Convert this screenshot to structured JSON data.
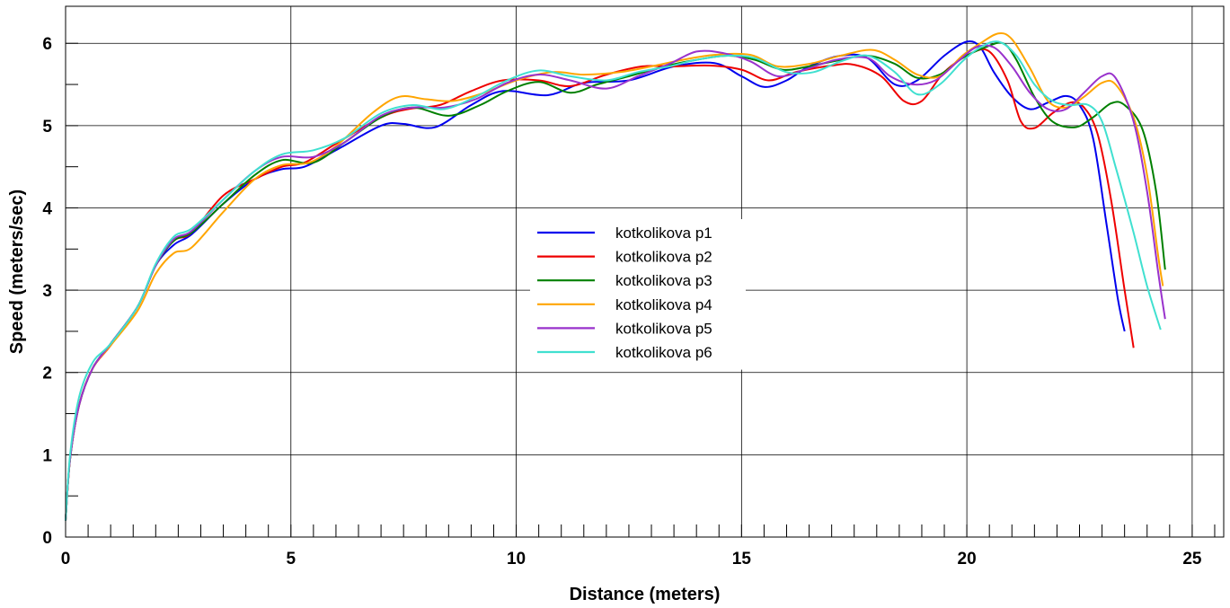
{
  "chart_data": {
    "type": "line",
    "xlabel": "Distance (meters)",
    "ylabel": "Speed (meters/sec)",
    "xlim": [
      0,
      25.7
    ],
    "ylim": [
      0,
      6.45
    ],
    "xticks": [
      0,
      5,
      10,
      15,
      20,
      25
    ],
    "yticks": [
      0,
      1,
      2,
      3,
      4,
      5,
      6
    ],
    "x_minor_step": 0.5,
    "y_minor_step": 0.5,
    "grid": true,
    "legend_position": "center",
    "series": [
      {
        "name": "kotkolikova p1",
        "color": "#0000ee",
        "points": [
          [
            0,
            0.2
          ],
          [
            0.1,
            0.95
          ],
          [
            0.3,
            1.6
          ],
          [
            0.6,
            2.05
          ],
          [
            1,
            2.35
          ],
          [
            1.6,
            2.8
          ],
          [
            2,
            3.3
          ],
          [
            2.4,
            3.55
          ],
          [
            2.8,
            3.68
          ],
          [
            3.5,
            4.05
          ],
          [
            4.2,
            4.35
          ],
          [
            4.8,
            4.47
          ],
          [
            5.3,
            4.5
          ],
          [
            6,
            4.7
          ],
          [
            7,
            5.0
          ],
          [
            7.5,
            5.02
          ],
          [
            8.2,
            4.98
          ],
          [
            9,
            5.25
          ],
          [
            9.7,
            5.42
          ],
          [
            10.7,
            5.37
          ],
          [
            11.5,
            5.52
          ],
          [
            12.5,
            5.55
          ],
          [
            13.5,
            5.72
          ],
          [
            14.4,
            5.76
          ],
          [
            15,
            5.6
          ],
          [
            15.5,
            5.47
          ],
          [
            16,
            5.55
          ],
          [
            16.5,
            5.72
          ],
          [
            17.2,
            5.85
          ],
          [
            17.8,
            5.82
          ],
          [
            18.4,
            5.5
          ],
          [
            18.9,
            5.55
          ],
          [
            19.5,
            5.85
          ],
          [
            20,
            6.02
          ],
          [
            20.3,
            5.95
          ],
          [
            20.6,
            5.65
          ],
          [
            21,
            5.35
          ],
          [
            21.4,
            5.2
          ],
          [
            21.8,
            5.28
          ],
          [
            22.2,
            5.36
          ],
          [
            22.5,
            5.25
          ],
          [
            22.8,
            4.85
          ],
          [
            23.1,
            3.8
          ],
          [
            23.35,
            2.9
          ],
          [
            23.5,
            2.5
          ]
        ]
      },
      {
        "name": "kotkolikova p2",
        "color": "#ee0000",
        "points": [
          [
            0,
            0.2
          ],
          [
            0.1,
            0.95
          ],
          [
            0.3,
            1.6
          ],
          [
            0.6,
            2.05
          ],
          [
            1,
            2.33
          ],
          [
            1.6,
            2.8
          ],
          [
            2,
            3.3
          ],
          [
            2.4,
            3.6
          ],
          [
            2.8,
            3.7
          ],
          [
            3.5,
            4.15
          ],
          [
            4.2,
            4.35
          ],
          [
            4.8,
            4.5
          ],
          [
            5.3,
            4.55
          ],
          [
            6,
            4.78
          ],
          [
            7,
            5.1
          ],
          [
            7.6,
            5.2
          ],
          [
            8.3,
            5.25
          ],
          [
            9,
            5.42
          ],
          [
            9.7,
            5.55
          ],
          [
            10.5,
            5.55
          ],
          [
            11.2,
            5.48
          ],
          [
            12,
            5.62
          ],
          [
            12.8,
            5.72
          ],
          [
            13.5,
            5.72
          ],
          [
            14.3,
            5.73
          ],
          [
            15,
            5.68
          ],
          [
            15.6,
            5.55
          ],
          [
            16.2,
            5.65
          ],
          [
            17,
            5.73
          ],
          [
            17.5,
            5.74
          ],
          [
            18.1,
            5.6
          ],
          [
            18.6,
            5.3
          ],
          [
            19,
            5.3
          ],
          [
            19.5,
            5.65
          ],
          [
            20.1,
            5.88
          ],
          [
            20.5,
            5.9
          ],
          [
            20.9,
            5.55
          ],
          [
            21.2,
            5.05
          ],
          [
            21.5,
            4.97
          ],
          [
            21.9,
            5.15
          ],
          [
            22.3,
            5.28
          ],
          [
            22.6,
            5.22
          ],
          [
            22.9,
            4.9
          ],
          [
            23.2,
            4.1
          ],
          [
            23.5,
            3.0
          ],
          [
            23.7,
            2.3
          ]
        ]
      },
      {
        "name": "kotkolikova p3",
        "color": "#008000",
        "points": [
          [
            0,
            0.2
          ],
          [
            0.1,
            0.95
          ],
          [
            0.3,
            1.6
          ],
          [
            0.6,
            2.05
          ],
          [
            1,
            2.35
          ],
          [
            1.6,
            2.8
          ],
          [
            2,
            3.3
          ],
          [
            2.4,
            3.6
          ],
          [
            2.8,
            3.7
          ],
          [
            3.5,
            4.05
          ],
          [
            4.2,
            4.4
          ],
          [
            4.8,
            4.58
          ],
          [
            5.5,
            4.55
          ],
          [
            6.2,
            4.8
          ],
          [
            7,
            5.1
          ],
          [
            7.7,
            5.22
          ],
          [
            8.5,
            5.12
          ],
          [
            9.2,
            5.25
          ],
          [
            9.8,
            5.42
          ],
          [
            10.5,
            5.53
          ],
          [
            11.2,
            5.4
          ],
          [
            11.8,
            5.5
          ],
          [
            12.5,
            5.6
          ],
          [
            13.3,
            5.72
          ],
          [
            14,
            5.8
          ],
          [
            14.7,
            5.85
          ],
          [
            15.3,
            5.8
          ],
          [
            15.9,
            5.68
          ],
          [
            16.5,
            5.72
          ],
          [
            17.2,
            5.8
          ],
          [
            17.8,
            5.85
          ],
          [
            18.4,
            5.75
          ],
          [
            18.9,
            5.58
          ],
          [
            19.4,
            5.62
          ],
          [
            19.9,
            5.82
          ],
          [
            20.4,
            5.95
          ],
          [
            20.8,
            6.0
          ],
          [
            21.1,
            5.8
          ],
          [
            21.5,
            5.35
          ],
          [
            21.9,
            5.05
          ],
          [
            22.4,
            4.98
          ],
          [
            22.8,
            5.1
          ],
          [
            23.2,
            5.27
          ],
          [
            23.5,
            5.25
          ],
          [
            23.9,
            4.95
          ],
          [
            24.2,
            4.2
          ],
          [
            24.4,
            3.25
          ]
        ]
      },
      {
        "name": "kotkolikova p4",
        "color": "#ffa500",
        "points": [
          [
            0,
            0.2
          ],
          [
            0.1,
            0.95
          ],
          [
            0.3,
            1.6
          ],
          [
            0.6,
            2.05
          ],
          [
            1,
            2.33
          ],
          [
            1.6,
            2.75
          ],
          [
            2,
            3.2
          ],
          [
            2.4,
            3.45
          ],
          [
            2.8,
            3.52
          ],
          [
            3.5,
            3.95
          ],
          [
            4.2,
            4.35
          ],
          [
            4.8,
            4.52
          ],
          [
            5.4,
            4.55
          ],
          [
            6,
            4.75
          ],
          [
            6.8,
            5.15
          ],
          [
            7.4,
            5.35
          ],
          [
            8,
            5.32
          ],
          [
            8.6,
            5.3
          ],
          [
            9.3,
            5.4
          ],
          [
            10,
            5.55
          ],
          [
            10.8,
            5.65
          ],
          [
            11.5,
            5.62
          ],
          [
            12.3,
            5.65
          ],
          [
            13,
            5.72
          ],
          [
            13.7,
            5.8
          ],
          [
            14.4,
            5.86
          ],
          [
            15.2,
            5.86
          ],
          [
            15.8,
            5.72
          ],
          [
            16.5,
            5.75
          ],
          [
            17.2,
            5.85
          ],
          [
            17.9,
            5.92
          ],
          [
            18.4,
            5.8
          ],
          [
            18.9,
            5.62
          ],
          [
            19.4,
            5.6
          ],
          [
            19.9,
            5.85
          ],
          [
            20.3,
            6.0
          ],
          [
            20.7,
            6.12
          ],
          [
            21,
            6.05
          ],
          [
            21.4,
            5.7
          ],
          [
            21.8,
            5.3
          ],
          [
            22.2,
            5.22
          ],
          [
            22.6,
            5.35
          ],
          [
            23,
            5.52
          ],
          [
            23.3,
            5.5
          ],
          [
            23.7,
            5.1
          ],
          [
            24,
            4.4
          ],
          [
            24.25,
            3.4
          ],
          [
            24.35,
            3.05
          ]
        ]
      },
      {
        "name": "kotkolikova p5",
        "color": "#9932cc",
        "points": [
          [
            0,
            0.2
          ],
          [
            0.1,
            0.95
          ],
          [
            0.3,
            1.6
          ],
          [
            0.6,
            2.05
          ],
          [
            1,
            2.35
          ],
          [
            1.6,
            2.8
          ],
          [
            2,
            3.3
          ],
          [
            2.4,
            3.62
          ],
          [
            2.8,
            3.72
          ],
          [
            3.5,
            4.1
          ],
          [
            4.2,
            4.45
          ],
          [
            4.8,
            4.62
          ],
          [
            5.5,
            4.62
          ],
          [
            6.2,
            4.8
          ],
          [
            7,
            5.12
          ],
          [
            7.7,
            5.22
          ],
          [
            8.4,
            5.22
          ],
          [
            9.1,
            5.32
          ],
          [
            9.8,
            5.52
          ],
          [
            10.5,
            5.62
          ],
          [
            11.2,
            5.55
          ],
          [
            12,
            5.45
          ],
          [
            12.7,
            5.6
          ],
          [
            13.4,
            5.75
          ],
          [
            14,
            5.9
          ],
          [
            14.6,
            5.88
          ],
          [
            15.2,
            5.78
          ],
          [
            15.8,
            5.6
          ],
          [
            16.4,
            5.68
          ],
          [
            17.1,
            5.8
          ],
          [
            17.8,
            5.82
          ],
          [
            18.3,
            5.6
          ],
          [
            18.8,
            5.5
          ],
          [
            19.3,
            5.55
          ],
          [
            19.8,
            5.78
          ],
          [
            20.2,
            5.95
          ],
          [
            20.6,
            5.95
          ],
          [
            21,
            5.72
          ],
          [
            21.4,
            5.4
          ],
          [
            21.8,
            5.2
          ],
          [
            22.2,
            5.2
          ],
          [
            22.6,
            5.4
          ],
          [
            23,
            5.6
          ],
          [
            23.3,
            5.58
          ],
          [
            23.7,
            5.05
          ],
          [
            24,
            4.2
          ],
          [
            24.25,
            3.2
          ],
          [
            24.4,
            2.65
          ]
        ]
      },
      {
        "name": "kotkolikova p6",
        "color": "#40e0d0",
        "points": [
          [
            0,
            0.2
          ],
          [
            0.1,
            1.0
          ],
          [
            0.3,
            1.7
          ],
          [
            0.6,
            2.12
          ],
          [
            1,
            2.35
          ],
          [
            1.6,
            2.8
          ],
          [
            2,
            3.32
          ],
          [
            2.4,
            3.65
          ],
          [
            2.8,
            3.75
          ],
          [
            3.5,
            4.1
          ],
          [
            4.2,
            4.45
          ],
          [
            4.8,
            4.65
          ],
          [
            5.5,
            4.7
          ],
          [
            6.2,
            4.85
          ],
          [
            7,
            5.15
          ],
          [
            7.7,
            5.25
          ],
          [
            8.4,
            5.2
          ],
          [
            9.1,
            5.35
          ],
          [
            9.8,
            5.55
          ],
          [
            10.5,
            5.67
          ],
          [
            11.2,
            5.6
          ],
          [
            12,
            5.55
          ],
          [
            12.7,
            5.65
          ],
          [
            13.4,
            5.72
          ],
          [
            14,
            5.8
          ],
          [
            14.7,
            5.85
          ],
          [
            15.3,
            5.82
          ],
          [
            16,
            5.65
          ],
          [
            16.6,
            5.65
          ],
          [
            17.2,
            5.78
          ],
          [
            17.8,
            5.85
          ],
          [
            18.4,
            5.65
          ],
          [
            18.9,
            5.38
          ],
          [
            19.4,
            5.5
          ],
          [
            19.9,
            5.78
          ],
          [
            20.3,
            5.95
          ],
          [
            20.7,
            6.02
          ],
          [
            21.1,
            5.85
          ],
          [
            21.5,
            5.5
          ],
          [
            21.9,
            5.3
          ],
          [
            22.3,
            5.25
          ],
          [
            22.7,
            5.25
          ],
          [
            23,
            5.05
          ],
          [
            23.3,
            4.5
          ],
          [
            23.7,
            3.7
          ],
          [
            24,
            3.05
          ],
          [
            24.3,
            2.52
          ]
        ]
      }
    ]
  }
}
